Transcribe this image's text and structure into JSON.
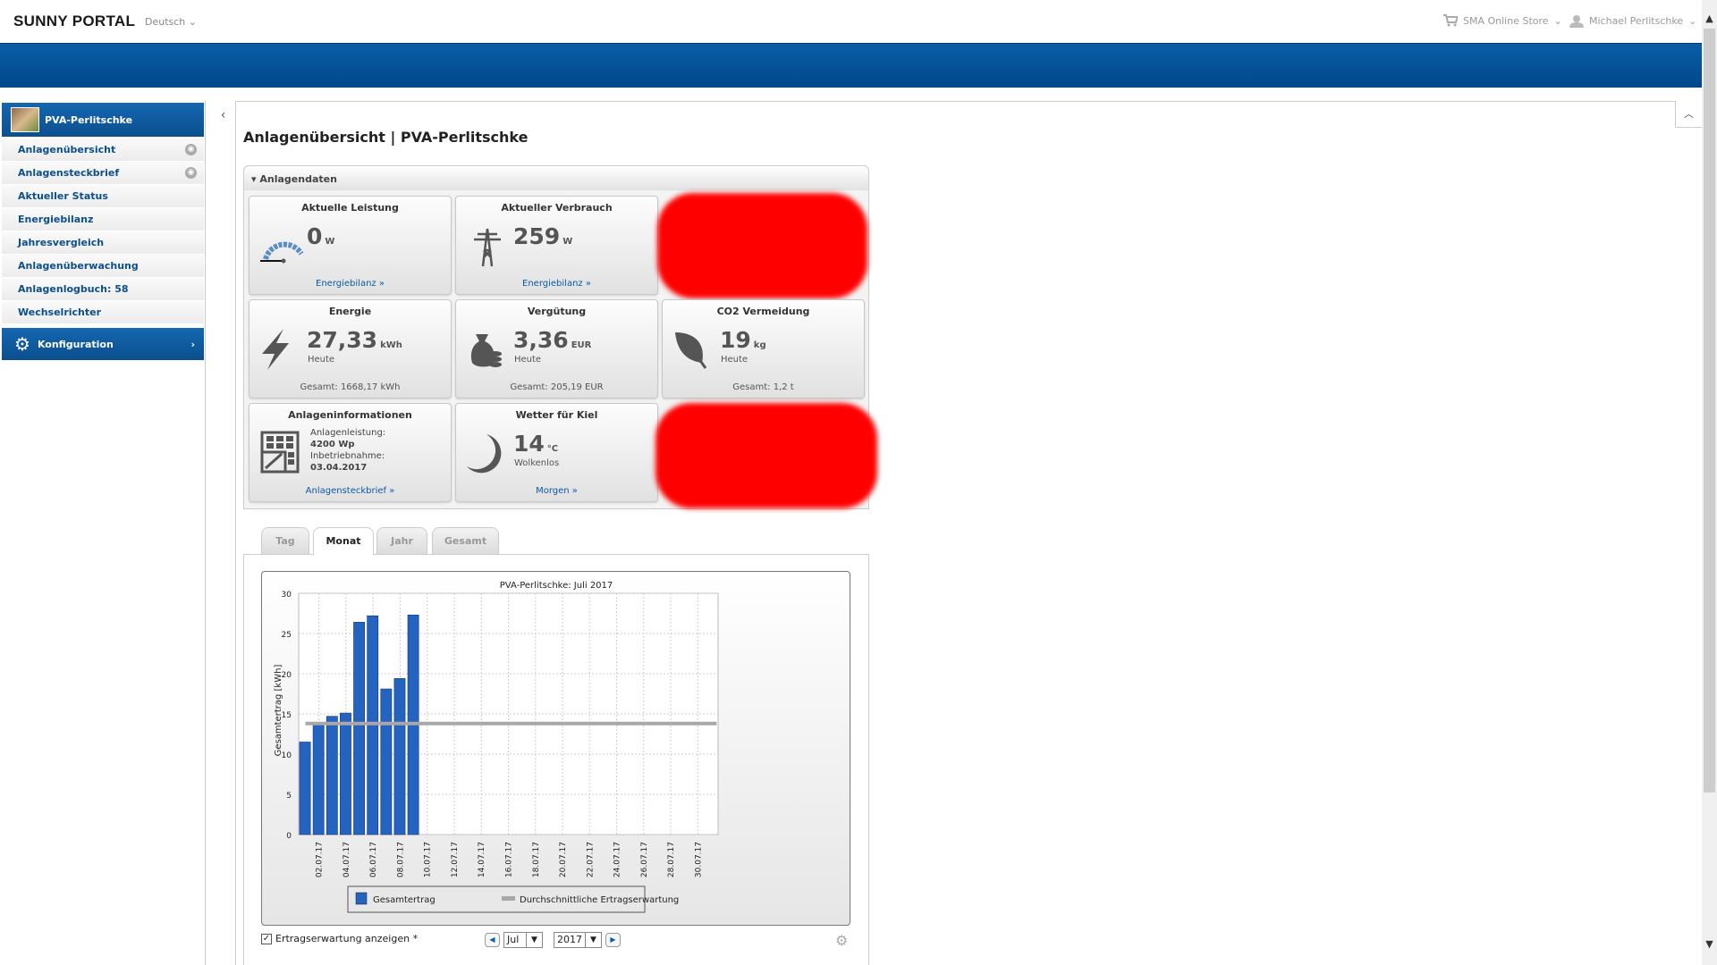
{
  "header": {
    "logo": "SUNNY PORTAL",
    "language": "Deutsch",
    "store": "SMA Online Store",
    "user": "Michael Perlitschke"
  },
  "sidebar": {
    "plant": "PVA-Perlitschke",
    "items": [
      {
        "label": "Anlagenübersicht",
        "globe": true
      },
      {
        "label": "Anlagensteckbrief",
        "globe": true
      },
      {
        "label": "Aktueller Status"
      },
      {
        "label": "Energiebilanz"
      },
      {
        "label": "Jahresvergleich"
      },
      {
        "label": "Anlagenüberwachung"
      },
      {
        "label": "Anlagenlogbuch: 58"
      },
      {
        "label": "Wechselrichter"
      }
    ],
    "config": "Konfiguration"
  },
  "page": {
    "title": "Anlagenübersicht | PVA-Perlitschke",
    "panel_title": "Anlagendaten"
  },
  "tiles": {
    "leistung": {
      "title": "Aktuelle Leistung",
      "value": "0",
      "unit": "W",
      "link": "Energiebilanz »"
    },
    "verbrauch": {
      "title": "Aktueller Verbrauch",
      "value": "259",
      "unit": "W",
      "link": "Energiebilanz »"
    },
    "energie": {
      "title": "Energie",
      "value": "27,33",
      "unit": "kWh",
      "sub": "Heute",
      "foot": "Gesamt: 1668,17 kWh"
    },
    "verguetung": {
      "title": "Vergütung",
      "value": "3,36",
      "unit": "EUR",
      "sub": "Heute",
      "foot": "Gesamt: 205,19 EUR"
    },
    "co2": {
      "title": "CO2 Vermeidung",
      "value": "19",
      "unit": "kg",
      "sub": "Heute",
      "foot": "Gesamt: 1,2 t"
    },
    "info": {
      "title": "Anlageninformationen",
      "l1": "Anlagenleistung:",
      "v1": "4200 Wp",
      "l2": "Inbetriebnahme:",
      "v2": "03.04.2017",
      "link": "Anlagensteckbrief »"
    },
    "wetter": {
      "title": "Wetter für Kiel",
      "value": "14",
      "unit": "°C",
      "sub": "Wolkenlos",
      "link": "Morgen »"
    }
  },
  "tabs": [
    "Tag",
    "Monat",
    "Jahr",
    "Gesamt"
  ],
  "active_tab": "Monat",
  "chart_data": {
    "type": "bar",
    "title": "PVA-Perlitschke: Juli 2017",
    "ylabel": "Gesamtertrag [kWh]",
    "ylim": [
      0,
      30
    ],
    "yticks": [
      "0",
      "5",
      "10",
      "15",
      "20",
      "25",
      "30"
    ],
    "xticks": [
      "02.07.17",
      "04.07.17",
      "06.07.17",
      "08.07.17",
      "10.07.17",
      "12.07.17",
      "14.07.17",
      "16.07.17",
      "18.07.17",
      "20.07.17",
      "22.07.17",
      "24.07.17",
      "26.07.17",
      "28.07.17",
      "30.07.17"
    ],
    "days": 31,
    "grid": true,
    "legend": "bottom",
    "series": [
      {
        "name": "Gesamtertrag",
        "type": "bar",
        "color": "#2563c0",
        "values": [
          11.5,
          13.7,
          14.7,
          15.1,
          26.4,
          27.2,
          18.1,
          19.4,
          27.3
        ]
      },
      {
        "name": "Durchschnittliche Ertragserwartung",
        "type": "line",
        "color": "#a8a8a8",
        "value": 13.8
      }
    ]
  },
  "controls": {
    "checkbox_label": "Ertragserwartung anzeigen *",
    "checked": true,
    "month": "Jul",
    "year": "2017"
  }
}
